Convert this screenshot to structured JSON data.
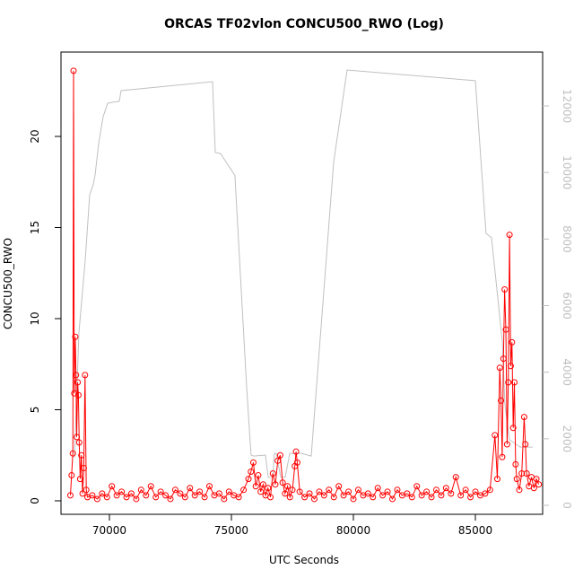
{
  "chart_data": {
    "type": "line",
    "title": "ORCAS TF02vlon CONCU500_RWO (Log)",
    "x_label": "UTC Seconds",
    "y_label": "CONCU500_RWO",
    "xlim": [
      68015,
      87757
    ],
    "xticks": [
      70000,
      75000,
      80000,
      85000
    ],
    "ylim": [
      -0.74,
      24.63
    ],
    "yticks": [
      0,
      5,
      10,
      15,
      20
    ],
    "y2lim": [
      -270,
      13619
    ],
    "y2ticks": [
      0,
      2000,
      4000,
      6000,
      8000,
      10000,
      12000
    ],
    "series": [
      {
        "color": "#ff0000",
        "markers": true,
        "x": [
          68400,
          68450,
          68500,
          68530,
          68560,
          68600,
          68630,
          68660,
          68700,
          68730,
          68760,
          68800,
          68850,
          68900,
          68950,
          69000,
          69050,
          69100,
          69300,
          69500,
          69700,
          69900,
          70100,
          70300,
          70500,
          70700,
          70900,
          71100,
          71300,
          71500,
          71700,
          71900,
          72100,
          72300,
          72500,
          72700,
          72900,
          73100,
          73300,
          73500,
          73700,
          73900,
          74100,
          74300,
          74500,
          74700,
          74900,
          75100,
          75300,
          75500,
          75700,
          75800,
          75900,
          76000,
          76100,
          76200,
          76300,
          76400,
          76500,
          76600,
          76700,
          76800,
          76900,
          77000,
          77100,
          77200,
          77300,
          77400,
          77500,
          77600,
          77650,
          77700,
          77800,
          78000,
          78200,
          78400,
          78600,
          78800,
          79000,
          79200,
          79400,
          79600,
          79800,
          80000,
          80200,
          80400,
          80600,
          80800,
          81000,
          81200,
          81400,
          81600,
          81800,
          82000,
          82200,
          82400,
          82600,
          82800,
          83000,
          83200,
          83400,
          83600,
          83800,
          84000,
          84200,
          84400,
          84600,
          84800,
          85000,
          85200,
          85400,
          85600,
          85800,
          85900,
          86000,
          86050,
          86100,
          86150,
          86200,
          86250,
          86300,
          86350,
          86400,
          86450,
          86500,
          86550,
          86600,
          86650,
          86700,
          86800,
          86900,
          87000,
          87050,
          87100,
          87200,
          87300,
          87400,
          87500,
          87600
        ],
        "values": [
          0.3,
          1.4,
          2.6,
          23.6,
          5.9,
          9.0,
          6.9,
          3.5,
          6.5,
          5.8,
          3.2,
          1.2,
          2.5,
          0.4,
          1.8,
          6.9,
          0.6,
          0.2,
          0.3,
          0.1,
          0.4,
          0.2,
          0.8,
          0.3,
          0.5,
          0.2,
          0.4,
          0.1,
          0.6,
          0.3,
          0.8,
          0.2,
          0.5,
          0.3,
          0.1,
          0.6,
          0.4,
          0.2,
          0.7,
          0.3,
          0.5,
          0.2,
          0.8,
          0.3,
          0.4,
          0.1,
          0.5,
          0.3,
          0.2,
          0.6,
          1.2,
          1.6,
          2.1,
          0.8,
          1.4,
          0.5,
          0.9,
          0.3,
          0.7,
          0.2,
          1.5,
          0.9,
          2.2,
          2.5,
          1.0,
          0.4,
          0.8,
          0.2,
          0.6,
          1.9,
          2.7,
          2.1,
          0.5,
          0.2,
          0.4,
          0.1,
          0.5,
          0.3,
          0.6,
          0.2,
          0.8,
          0.3,
          0.5,
          0.1,
          0.6,
          0.3,
          0.4,
          0.2,
          0.7,
          0.3,
          0.5,
          0.1,
          0.6,
          0.3,
          0.4,
          0.2,
          0.8,
          0.3,
          0.5,
          0.2,
          0.6,
          0.3,
          0.7,
          0.4,
          1.3,
          0.3,
          0.6,
          0.2,
          0.5,
          0.3,
          0.4,
          0.6,
          3.6,
          1.2,
          7.3,
          5.5,
          2.4,
          7.8,
          11.6,
          9.4,
          3.1,
          6.5,
          14.6,
          7.4,
          8.7,
          4.0,
          6.5,
          2.0,
          1.2,
          0.6,
          1.5,
          4.6,
          3.1,
          1.5,
          0.8,
          1.3,
          0.7,
          1.2,
          0.9
        ]
      },
      {
        "color": "#c0c0c0",
        "axis": "y2",
        "markers": false,
        "x": [
          68566,
          68750,
          69008,
          69191,
          69338,
          69412,
          69559,
          69743,
          69927,
          70110,
          70404,
          70478,
          74227,
          74337,
          74555,
          75143,
          75621,
          75805,
          75915,
          76393,
          76507,
          76690,
          76764,
          76838,
          77022,
          77205,
          77389,
          77867,
          78271,
          79190,
          79741,
          84998,
          85439,
          85660,
          86101,
          86211,
          86395,
          86836,
          87350
        ],
        "values": [
          1430,
          5200,
          7360,
          9330,
          9650,
          9920,
          10870,
          11680,
          12080,
          12110,
          12140,
          12460,
          12730,
          10600,
          10570,
          9910,
          3590,
          1510,
          1480,
          1510,
          840,
          840,
          1560,
          1560,
          840,
          840,
          1560,
          1560,
          1480,
          10310,
          13080,
          12760,
          8170,
          8040,
          4940,
          3050,
          1970,
          1750,
          1750
        ]
      }
    ]
  }
}
